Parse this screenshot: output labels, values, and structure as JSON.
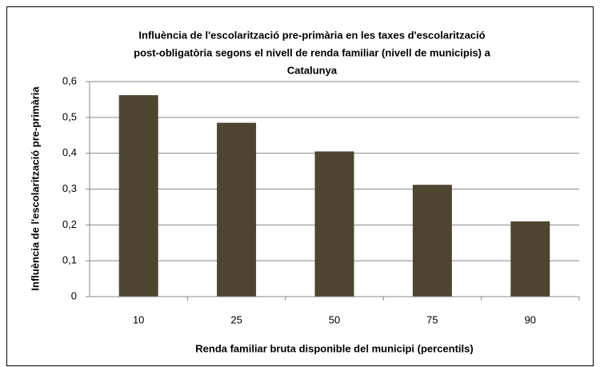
{
  "chart_data": {
    "type": "bar",
    "title": [
      "Influència de l'escolarització  pre-primària en les taxes d'escolarització",
      "post-obligatòria segons el nivell de renda familiar (nivell de municipis) a",
      "Catalunya"
    ],
    "x_label": "Renda familiar  bruta disponible  del municipi  (percentils)",
    "y_label": "Influència de l'escolarització  pre-primària",
    "categories": [
      "10",
      "25",
      "50",
      "75",
      "90"
    ],
    "values": [
      0.562,
      0.485,
      0.405,
      0.312,
      0.21
    ],
    "color": "#4d4530",
    "ylim": [
      0,
      0.6
    ],
    "yticks": [
      0,
      {
        "value": 0.1,
        "label": "0,1"
      },
      {
        "value": 0.2,
        "label": "0,2"
      },
      {
        "value": 0.3,
        "label": "0,3"
      },
      {
        "value": 0.4,
        "label": "0,4"
      },
      {
        "value": 0.5,
        "label": "0,5"
      },
      {
        "value": 0.6,
        "label": "0,6"
      }
    ],
    "grid": true
  }
}
